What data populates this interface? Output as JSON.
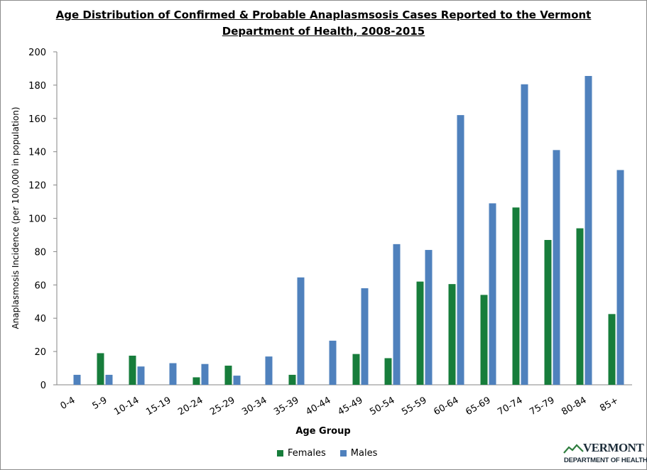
{
  "chart_data": {
    "type": "bar",
    "title": "Age Distribution of Confirmed & Probable Anaplasmsosis Cases Reported to the Vermont",
    "title_line2": "Department of Health, 2008-2015",
    "xlabel": "Age Group",
    "ylabel": "Anaplasmosis Incidence (per 100,000 in population)",
    "ylim": [
      0,
      200
    ],
    "yticks": [
      "0",
      "20",
      "40",
      "60",
      "80",
      "100",
      "120",
      "140",
      "160",
      "180",
      "200"
    ],
    "grid": false,
    "legend_position": "bottom",
    "categories": [
      "0-4",
      "5-9",
      "10-14",
      "15-19",
      "20-24",
      "25-29",
      "30-34",
      "35-39",
      "40-44",
      "45-49",
      "50-54",
      "55-59",
      "60-64",
      "65-69",
      "70-74",
      "75-79",
      "80-84",
      "85+"
    ],
    "series": [
      {
        "name": "Females",
        "color": "#177d3b",
        "values": [
          0,
          19,
          17.5,
          0,
          4.5,
          11.5,
          0,
          6,
          0,
          18.5,
          16,
          62,
          60.5,
          54,
          106.5,
          87,
          94,
          42.5
        ]
      },
      {
        "name": "Males",
        "color": "#4f81bd",
        "values": [
          6,
          6,
          11,
          13,
          12.5,
          5.5,
          17,
          64.5,
          26.5,
          58,
          84.5,
          81,
          162,
          109,
          180.5,
          141,
          185.5,
          129
        ]
      }
    ]
  },
  "logo": {
    "line1": "VERMONT",
    "line2": "DEPARTMENT OF HEALTH"
  }
}
